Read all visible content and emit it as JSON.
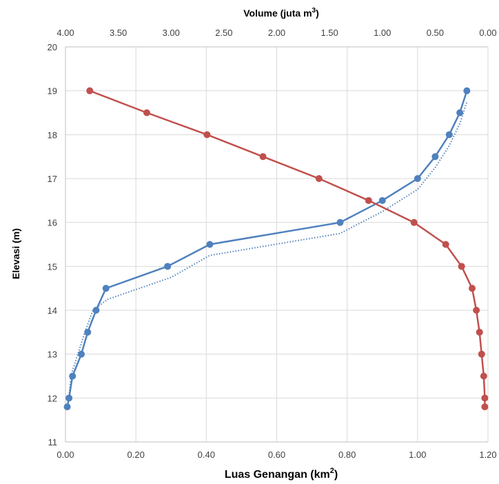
{
  "chart_data": {
    "type": "line",
    "x_bottom": {
      "label_main": "Luas Genangan (km",
      "label_sup": "2",
      "label_tail": ")",
      "range": [
        0,
        1.2
      ],
      "ticks": [
        "0.00",
        "0.20",
        "0.40",
        "0.60",
        "0.80",
        "1.00",
        "1.20"
      ]
    },
    "x_top": {
      "label_main": "Volume (juta m",
      "label_sup": "3",
      "label_tail": ")",
      "range": [
        4,
        0
      ],
      "reversed": true,
      "ticks": [
        "4.00",
        "3.50",
        "3.00",
        "2.50",
        "2.00",
        "1.50",
        "1.00",
        "0.50",
        "0.00"
      ]
    },
    "y": {
      "label": "Elevasi (m)",
      "range": [
        11,
        20
      ],
      "ticks": [
        "11",
        "12",
        "13",
        "14",
        "15",
        "16",
        "17",
        "18",
        "19",
        "20"
      ]
    },
    "grid": true,
    "series": [
      {
        "axis": "bottom",
        "color": "#4f81bd",
        "style": "solid-markers",
        "points": [
          [
            0.005,
            11.8
          ],
          [
            0.01,
            12.0
          ],
          [
            0.02,
            12.5
          ],
          [
            0.045,
            13.0
          ],
          [
            0.063,
            13.5
          ],
          [
            0.087,
            14.0
          ],
          [
            0.115,
            14.5
          ],
          [
            0.29,
            15.0
          ],
          [
            0.41,
            15.5
          ],
          [
            0.78,
            16.0
          ],
          [
            0.9,
            16.5
          ],
          [
            1.0,
            17.0
          ],
          [
            1.05,
            17.5
          ],
          [
            1.09,
            18.0
          ],
          [
            1.12,
            18.5
          ],
          [
            1.14,
            19.0
          ]
        ]
      },
      {
        "axis": "bottom",
        "color": "#4f81bd",
        "style": "dotted",
        "points": [
          [
            0.005,
            11.8
          ],
          [
            0.01,
            12.0
          ],
          [
            0.015,
            12.5
          ],
          [
            0.035,
            13.0
          ],
          [
            0.055,
            13.5
          ],
          [
            0.078,
            14.0
          ],
          [
            0.12,
            14.25
          ],
          [
            0.3,
            14.75
          ],
          [
            0.41,
            15.25
          ],
          [
            0.78,
            15.75
          ],
          [
            0.9,
            16.25
          ],
          [
            1.0,
            16.75
          ],
          [
            1.05,
            17.25
          ],
          [
            1.09,
            17.75
          ],
          [
            1.12,
            18.25
          ],
          [
            1.14,
            18.75
          ]
        ]
      },
      {
        "axis": "top",
        "color": "#c0504d",
        "style": "solid-markers",
        "points": [
          [
            3.77,
            19.0
          ],
          [
            3.23,
            18.5
          ],
          [
            2.66,
            18.0
          ],
          [
            2.13,
            17.5
          ],
          [
            1.6,
            17.0
          ],
          [
            1.13,
            16.5
          ],
          [
            0.7,
            16.0
          ],
          [
            0.4,
            15.5
          ],
          [
            0.25,
            15.0
          ],
          [
            0.15,
            14.5
          ],
          [
            0.11,
            14.0
          ],
          [
            0.08,
            13.5
          ],
          [
            0.06,
            13.0
          ],
          [
            0.04,
            12.5
          ],
          [
            0.03,
            12.0
          ],
          [
            0.03,
            11.8
          ]
        ]
      }
    ]
  }
}
